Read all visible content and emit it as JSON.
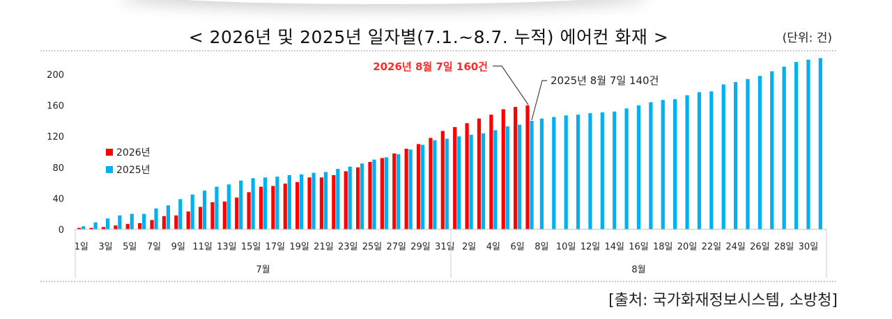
{
  "chart_data": {
    "type": "bar",
    "title": "< 2026년 및 2025년 일자별(7.1.~8.7. 누적) 에어컨 화재 >",
    "unit_label": "(단위: 건)",
    "source": "[출처: 국가화재정보시스템, 소방청]",
    "ylim": [
      0,
      220
    ],
    "y_ticks": [
      0,
      40,
      80,
      120,
      160,
      200
    ],
    "categories": [
      "7/1",
      "7/2",
      "7/3",
      "7/4",
      "7/5",
      "7/6",
      "7/7",
      "7/8",
      "7/9",
      "7/10",
      "7/11",
      "7/12",
      "7/13",
      "7/14",
      "7/15",
      "7/16",
      "7/17",
      "7/18",
      "7/19",
      "7/20",
      "7/21",
      "7/22",
      "7/23",
      "7/24",
      "7/25",
      "7/26",
      "7/27",
      "7/28",
      "7/29",
      "7/30",
      "7/31",
      "8/1",
      "8/2",
      "8/3",
      "8/4",
      "8/5",
      "8/6",
      "8/7",
      "8/8",
      "8/9",
      "8/10",
      "8/11",
      "8/12",
      "8/13",
      "8/14",
      "8/15",
      "8/16",
      "8/17",
      "8/18",
      "8/19",
      "8/20",
      "8/21",
      "8/22",
      "8/23",
      "8/24",
      "8/25",
      "8/26",
      "8/27",
      "8/28",
      "8/29",
      "8/30",
      "8/31"
    ],
    "x_tick_labels": [
      {
        "index": 0,
        "label": "1일"
      },
      {
        "index": 2,
        "label": "3일"
      },
      {
        "index": 4,
        "label": "5일"
      },
      {
        "index": 6,
        "label": "7일"
      },
      {
        "index": 8,
        "label": "9일"
      },
      {
        "index": 10,
        "label": "11일"
      },
      {
        "index": 12,
        "label": "13일"
      },
      {
        "index": 14,
        "label": "15일"
      },
      {
        "index": 16,
        "label": "17일"
      },
      {
        "index": 18,
        "label": "19일"
      },
      {
        "index": 20,
        "label": "21일"
      },
      {
        "index": 22,
        "label": "23일"
      },
      {
        "index": 24,
        "label": "25일"
      },
      {
        "index": 26,
        "label": "27일"
      },
      {
        "index": 28,
        "label": "29일"
      },
      {
        "index": 30,
        "label": "31일"
      },
      {
        "index": 32,
        "label": "2일"
      },
      {
        "index": 34,
        "label": "4일"
      },
      {
        "index": 36,
        "label": "6일"
      },
      {
        "index": 38,
        "label": "8일"
      },
      {
        "index": 40,
        "label": "10일"
      },
      {
        "index": 42,
        "label": "12일"
      },
      {
        "index": 44,
        "label": "14일"
      },
      {
        "index": 46,
        "label": "16일"
      },
      {
        "index": 48,
        "label": "18일"
      },
      {
        "index": 50,
        "label": "20일"
      },
      {
        "index": 52,
        "label": "22일"
      },
      {
        "index": 54,
        "label": "24일"
      },
      {
        "index": 56,
        "label": "26일"
      },
      {
        "index": 58,
        "label": "28일"
      },
      {
        "index": 60,
        "label": "30일"
      }
    ],
    "month_groups": [
      {
        "label": "7월",
        "start": 0,
        "end": 30
      },
      {
        "label": "8월",
        "start": 31,
        "end": 61
      }
    ],
    "series": [
      {
        "name": "2026년",
        "color": "#ff0000",
        "values": [
          2,
          2,
          3,
          5,
          7,
          8,
          12,
          17,
          18,
          23,
          29,
          35,
          36,
          41,
          48,
          55,
          56,
          59,
          61,
          67,
          67,
          70,
          75,
          80,
          87,
          92,
          98,
          104,
          110,
          118,
          127,
          132,
          137,
          143,
          148,
          155,
          158,
          160,
          null,
          null,
          null,
          null,
          null,
          null,
          null,
          null,
          null,
          null,
          null,
          null,
          null,
          null,
          null,
          null,
          null,
          null,
          null,
          null,
          null,
          null,
          null,
          null
        ]
      },
      {
        "name": "2025년",
        "color": "#00b0f0",
        "values": [
          4,
          9,
          14,
          18,
          20,
          20,
          27,
          31,
          39,
          45,
          50,
          55,
          58,
          63,
          66,
          67,
          68,
          70,
          71,
          73,
          74,
          78,
          81,
          85,
          90,
          93,
          97,
          103,
          109,
          115,
          117,
          120,
          122,
          124,
          128,
          133,
          135,
          140,
          143,
          145,
          147,
          148,
          150,
          151,
          152,
          156,
          160,
          164,
          167,
          168,
          173,
          177,
          178,
          187,
          190,
          194,
          198,
          204,
          210,
          216,
          219,
          221
        ]
      }
    ],
    "annotations": [
      {
        "text": "2026년 8월 7일 160건",
        "series": "2026년",
        "index": 37,
        "color": "#ff2a2a"
      },
      {
        "text": "2025년 8월 7일 140건",
        "series": "2025년",
        "index": 37,
        "color": "#222222"
      }
    ]
  }
}
